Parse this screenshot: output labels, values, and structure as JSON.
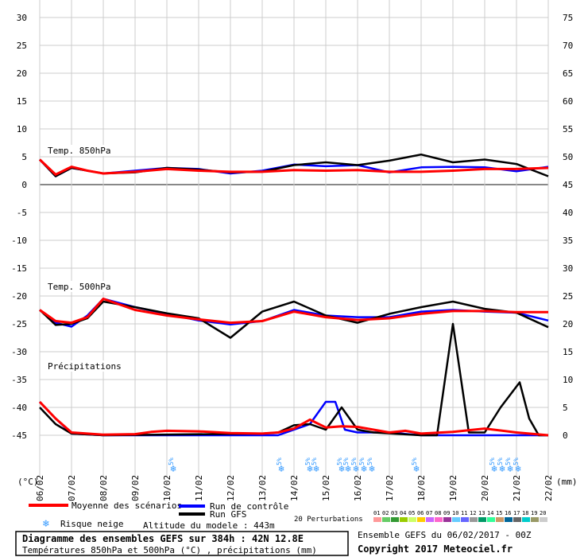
{
  "chart_data": {
    "type": "line",
    "title": "Diagramme des ensembles GEFS sur 384h : 42N 12.8E",
    "subtitle": "Températures 850hPa et 500hPa (°C) , précipitations (mm)",
    "left_axis": {
      "unit": "(°C)",
      "ticks": [
        30,
        25,
        20,
        15,
        10,
        5,
        0,
        -5,
        -10,
        -15,
        -20,
        -25,
        -30,
        -35,
        -40,
        -45
      ],
      "range": [
        -45,
        30
      ]
    },
    "right_axis": {
      "unit": "(mm)",
      "ticks": [
        75,
        70,
        65,
        60,
        55,
        50,
        45,
        40,
        35,
        30,
        25,
        20,
        15,
        10,
        5,
        0
      ],
      "range": [
        0,
        75
      ]
    },
    "x_ticks": [
      "06/02",
      "07/02",
      "08/02",
      "09/02",
      "10/02",
      "11/02",
      "12/02",
      "13/02",
      "14/02",
      "15/02",
      "16/02",
      "17/02",
      "18/02",
      "19/02",
      "20/02",
      "21/02",
      "22/02"
    ],
    "panel_labels": {
      "t850": "Temp. 850hPa",
      "t500": "Temp. 500hPa",
      "precip": "Précipitations"
    },
    "snow_marks": [
      {
        "day": 4.2,
        "label": "5%"
      },
      {
        "day": 7.6,
        "label": "5%"
      },
      {
        "day": 8.5,
        "label": "5%"
      },
      {
        "day": 8.7,
        "label": "5%"
      },
      {
        "day": 9.5,
        "label": "5%"
      },
      {
        "day": 9.7,
        "label": "5%"
      },
      {
        "day": 9.95,
        "label": "5%"
      },
      {
        "day": 10.2,
        "label": "5%"
      },
      {
        "day": 10.45,
        "label": "5%"
      },
      {
        "day": 11.85,
        "label": "5%"
      },
      {
        "day": 14.3,
        "label": "5%"
      },
      {
        "day": 14.55,
        "label": "5%"
      },
      {
        "day": 14.8,
        "label": "5%"
      },
      {
        "day": 15.05,
        "label": "5%"
      }
    ],
    "series": [
      {
        "name": "Moyenne des scénarios",
        "color": "#ff0000",
        "t850": [
          [
            0,
            4.5
          ],
          [
            0.5,
            1.8
          ],
          [
            1,
            3.2
          ],
          [
            1.5,
            2.5
          ],
          [
            2,
            2.0
          ],
          [
            3,
            2.3
          ],
          [
            4,
            2.8
          ],
          [
            5,
            2.5
          ],
          [
            6,
            2.3
          ],
          [
            7,
            2.3
          ],
          [
            8,
            2.6
          ],
          [
            9,
            2.5
          ],
          [
            10,
            2.6
          ],
          [
            11,
            2.3
          ],
          [
            12,
            2.3
          ],
          [
            13,
            2.5
          ],
          [
            14,
            2.8
          ],
          [
            15,
            2.8
          ],
          [
            16,
            3.0
          ]
        ],
        "t500": [
          [
            0,
            -22.5
          ],
          [
            0.5,
            -24.5
          ],
          [
            1,
            -24.8
          ],
          [
            1.5,
            -23.8
          ],
          [
            2,
            -20.5
          ],
          [
            3,
            -22.5
          ],
          [
            4,
            -23.5
          ],
          [
            5,
            -24.2
          ],
          [
            6,
            -24.8
          ],
          [
            7,
            -24.5
          ],
          [
            8,
            -22.8
          ],
          [
            9,
            -23.8
          ],
          [
            10,
            -24.3
          ],
          [
            11,
            -24.0
          ],
          [
            12,
            -23.2
          ],
          [
            13,
            -22.7
          ],
          [
            14,
            -22.7
          ],
          [
            15,
            -22.9
          ],
          [
            16,
            -22.9
          ]
        ],
        "precip": [
          [
            0,
            6
          ],
          [
            0.5,
            3
          ],
          [
            1,
            0.5
          ],
          [
            2,
            0.1
          ],
          [
            3,
            0.2
          ],
          [
            3.5,
            0.6
          ],
          [
            4,
            0.8
          ],
          [
            5,
            0.7
          ],
          [
            6,
            0.4
          ],
          [
            7,
            0.3
          ],
          [
            7.5,
            0.5
          ],
          [
            8,
            1.2
          ],
          [
            8.5,
            2.8
          ],
          [
            9,
            1.4
          ],
          [
            9.5,
            1.6
          ],
          [
            10,
            1.5
          ],
          [
            10.5,
            1.0
          ],
          [
            11,
            0.5
          ],
          [
            11.5,
            0.8
          ],
          [
            12,
            0.3
          ],
          [
            13,
            0.6
          ],
          [
            14,
            1.2
          ],
          [
            15,
            0.5
          ],
          [
            16,
            0
          ]
        ]
      },
      {
        "name": "Run de contrôle",
        "color": "#0000ff",
        "t850": [
          [
            0,
            4.5
          ],
          [
            0.5,
            1.5
          ],
          [
            1,
            3.0
          ],
          [
            2,
            2.0
          ],
          [
            3,
            2.5
          ],
          [
            4,
            3.0
          ],
          [
            5,
            2.8
          ],
          [
            6,
            2.0
          ],
          [
            7,
            2.5
          ],
          [
            8,
            3.6
          ],
          [
            9,
            3.3
          ],
          [
            10,
            3.5
          ],
          [
            11,
            2.2
          ],
          [
            12,
            3.1
          ],
          [
            13,
            3.2
          ],
          [
            14,
            3.1
          ],
          [
            15,
            2.4
          ],
          [
            16,
            3.2
          ]
        ],
        "t500": [
          [
            0,
            -22.5
          ],
          [
            0.5,
            -24.8
          ],
          [
            1,
            -25.5
          ],
          [
            1.5,
            -23.5
          ],
          [
            2,
            -20.5
          ],
          [
            3,
            -22.0
          ],
          [
            4,
            -23.2
          ],
          [
            5,
            -24.4
          ],
          [
            6,
            -25.1
          ],
          [
            7,
            -24.5
          ],
          [
            8,
            -22.5
          ],
          [
            9,
            -23.5
          ],
          [
            10,
            -23.8
          ],
          [
            11,
            -23.8
          ],
          [
            12,
            -22.8
          ],
          [
            13,
            -22.5
          ],
          [
            14,
            -22.8
          ],
          [
            15,
            -23.0
          ],
          [
            16,
            -24.4
          ]
        ],
        "precip": [
          [
            0,
            6
          ],
          [
            0.5,
            3
          ],
          [
            1,
            0.3
          ],
          [
            2,
            0
          ],
          [
            7.5,
            0
          ],
          [
            8,
            1
          ],
          [
            8.5,
            2
          ],
          [
            9,
            6
          ],
          [
            9.3,
            6
          ],
          [
            9.6,
            1
          ],
          [
            10,
            0.5
          ],
          [
            11,
            0.5
          ],
          [
            12,
            0
          ],
          [
            16,
            0
          ]
        ]
      },
      {
        "name": "Run GFS",
        "color": "#000000",
        "t850": [
          [
            0,
            4.5
          ],
          [
            0.5,
            1.5
          ],
          [
            1,
            3.0
          ],
          [
            2,
            2.0
          ],
          [
            3,
            2.2
          ],
          [
            4,
            3.0
          ],
          [
            5,
            2.7
          ],
          [
            6,
            2.2
          ],
          [
            7,
            2.3
          ],
          [
            8,
            3.5
          ],
          [
            9,
            4.0
          ],
          [
            10,
            3.5
          ],
          [
            11,
            4.3
          ],
          [
            12,
            5.4
          ],
          [
            13,
            4.0
          ],
          [
            14,
            4.5
          ],
          [
            15,
            3.7
          ],
          [
            16,
            1.5
          ]
        ],
        "t500": [
          [
            0,
            -22.5
          ],
          [
            0.5,
            -25.2
          ],
          [
            1,
            -25.0
          ],
          [
            1.5,
            -24.0
          ],
          [
            2,
            -21.0
          ],
          [
            3,
            -22.0
          ],
          [
            4,
            -23.1
          ],
          [
            5,
            -24.0
          ],
          [
            6,
            -27.5
          ],
          [
            7,
            -22.8
          ],
          [
            8,
            -21.0
          ],
          [
            9,
            -23.5
          ],
          [
            10,
            -24.8
          ],
          [
            11,
            -23.2
          ],
          [
            12,
            -22.0
          ],
          [
            13,
            -21.0
          ],
          [
            14,
            -22.3
          ],
          [
            15,
            -23.0
          ],
          [
            16,
            -25.6
          ]
        ],
        "precip": [
          [
            0,
            5
          ],
          [
            0.5,
            2
          ],
          [
            1,
            0.3
          ],
          [
            2,
            0
          ],
          [
            7,
            0.3
          ],
          [
            7.5,
            0.5
          ],
          [
            8,
            1.8
          ],
          [
            8.5,
            2
          ],
          [
            9,
            1
          ],
          [
            9.5,
            5
          ],
          [
            10,
            1
          ],
          [
            10.5,
            0.5
          ],
          [
            12,
            0
          ],
          [
            12.5,
            0
          ],
          [
            13,
            20
          ],
          [
            13.5,
            0.5
          ],
          [
            14,
            0.5
          ],
          [
            14.5,
            5
          ],
          [
            15.1,
            9.5
          ],
          [
            15.4,
            3
          ],
          [
            15.7,
            0
          ],
          [
            16,
            0
          ]
        ]
      }
    ],
    "perturbations_count": 20
  },
  "legend": {
    "mean": "Moyenne des scénarios",
    "control": "Run de contrôle",
    "gfs": "Run GFS",
    "perturbations": "20 Perturbations",
    "snow": "Risque neige",
    "altitude": "Altitude du modele : 443m"
  },
  "perturbation_labels": [
    "01",
    "02",
    "03",
    "04",
    "05",
    "06",
    "07",
    "08",
    "09",
    "10",
    "11",
    "12",
    "13",
    "14",
    "15",
    "16",
    "17",
    "18",
    "19",
    "20"
  ],
  "perturbation_colors": [
    "#ff9999",
    "#66cc66",
    "#339933",
    "#99cc00",
    "#ccff66",
    "#ffcc00",
    "#cc66ff",
    "#ff66cc",
    "#993399",
    "#66ccff",
    "#6666ff",
    "#999999",
    "#009966",
    "#33ff99",
    "#cc9966",
    "#006699",
    "#666666",
    "#00cccc",
    "#999966",
    "#cccccc"
  ],
  "footer": {
    "title": "Diagramme des ensembles GEFS sur 384h : 42N 12.8E",
    "subtitle": "Températures 850hPa et 500hPa (°C) , précipitations (mm)",
    "run": "Ensemble GEFS du 06/02/2017 - 00Z",
    "copyright": "Copyright 2017 Meteociel.fr"
  }
}
